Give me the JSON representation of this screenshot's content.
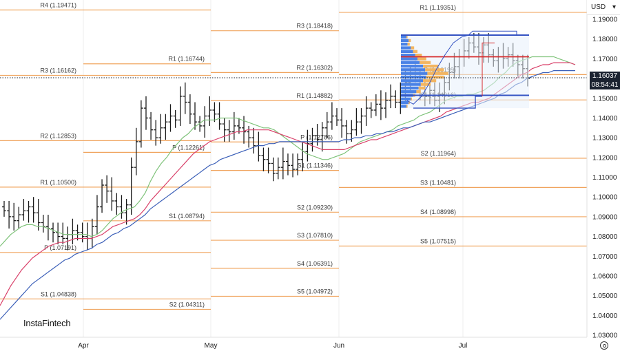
{
  "currency": {
    "label": "USD",
    "caret": "▾"
  },
  "current_price": {
    "value": "1.16037",
    "countdown": "08:54:41"
  },
  "logo_text": "InstaFintech",
  "colors": {
    "pivot_line": "#f0a45e",
    "pivot_text": "#3a3a3a",
    "bar": "#1a1a1a",
    "ma_fast": "#7fc37a",
    "ma_mid": "#d9416a",
    "ma_slow": "#3b5fb8",
    "vp_box": "#3352c2",
    "vp_fill": "#e8f0fb",
    "poc": "#d62a2a",
    "vol_blue": "#4a82e6",
    "vol_orange": "#f3b560",
    "grid": "#ececec"
  },
  "chart_data": {
    "type": "bar",
    "y_axis": {
      "min": 1.03,
      "max": 1.195,
      "ticks": [
        "1.19000",
        "1.18000",
        "1.17000",
        "1.16000",
        "1.15000",
        "1.14000",
        "1.13000",
        "1.12000",
        "1.11000",
        "1.10000",
        "1.09000",
        "1.08000",
        "1.07000",
        "1.06000",
        "1.05000",
        "1.04000",
        "1.03000"
      ]
    },
    "x_axis": {
      "months": [
        "Apr",
        "May",
        "Jun",
        "Jul"
      ]
    },
    "pivot_levels": [
      {
        "label": "R4 (1.19471)",
        "value": 1.19471,
        "period": 0
      },
      {
        "label": "R3 (1.16162)",
        "value": 1.16162,
        "period": 0
      },
      {
        "label": "R2 (1.12853)",
        "value": 1.12853,
        "period": 0
      },
      {
        "label": "R1 (1.10500)",
        "value": 1.105,
        "period": 0
      },
      {
        "label": "P (1.07191)",
        "value": 1.07191,
        "period": 0
      },
      {
        "label": "S1 (1.04838)",
        "value": 1.04838,
        "period": 0
      },
      {
        "label": "R1 (1.16744)",
        "value": 1.16744,
        "period": 1
      },
      {
        "label": "P (1.12261)",
        "value": 1.12261,
        "period": 1
      },
      {
        "label": "S1 (1.08794)",
        "value": 1.08794,
        "period": 1
      },
      {
        "label": "S2 (1.04311)",
        "value": 1.04311,
        "period": 1
      },
      {
        "label": "R3 (1.18418)",
        "value": 1.18418,
        "period": 2
      },
      {
        "label": "R2 (1.16302)",
        "value": 1.16302,
        "period": 2
      },
      {
        "label": "R1 (1.14882)",
        "value": 1.14882,
        "period": 2
      },
      {
        "label": "P (1.12786)",
        "value": 1.12786,
        "period": 2
      },
      {
        "label": "S1 (1.11346)",
        "value": 1.11346,
        "period": 2
      },
      {
        "label": "S2 (1.09230)",
        "value": 1.0923,
        "period": 2
      },
      {
        "label": "S3 (1.07810)",
        "value": 1.0781,
        "period": 2
      },
      {
        "label": "S4 (1.06391)",
        "value": 1.06391,
        "period": 2
      },
      {
        "label": "S5 (1.04972)",
        "value": 1.04972,
        "period": 2
      },
      {
        "label": "R1 (1.19351)",
        "value": 1.19351,
        "period": 3
      },
      {
        "label": "P (1.16199)",
        "value": 1.16199,
        "period": 3
      },
      {
        "label": "S1 (1.14916)",
        "value": 1.14916,
        "period": 3
      },
      {
        "label": "S2 (1.11964)",
        "value": 1.11964,
        "period": 3
      },
      {
        "label": "S3 (1.10481)",
        "value": 1.10481,
        "period": 3
      },
      {
        "label": "S4 (1.08998)",
        "value": 1.08998,
        "period": 3
      },
      {
        "label": "S5 (1.07515)",
        "value": 1.07515,
        "period": 3
      }
    ],
    "price_closes": [
      1.093,
      1.09,
      1.088,
      1.091,
      1.093,
      1.095,
      1.092,
      1.087,
      1.085,
      1.084,
      1.082,
      1.08,
      1.079,
      1.081,
      1.083,
      1.082,
      1.08,
      1.079,
      1.085,
      1.095,
      1.106,
      1.103,
      1.098,
      1.095,
      1.092,
      1.096,
      1.115,
      1.128,
      1.145,
      1.14,
      1.134,
      1.13,
      1.135,
      1.138,
      1.141,
      1.139,
      1.151,
      1.148,
      1.142,
      1.138,
      1.136,
      1.141,
      1.144,
      1.142,
      1.137,
      1.134,
      1.133,
      1.136,
      1.135,
      1.133,
      1.13,
      1.126,
      1.121,
      1.119,
      1.117,
      1.112,
      1.115,
      1.118,
      1.116,
      1.114,
      1.119,
      1.123,
      1.127,
      1.131,
      1.129,
      1.135,
      1.138,
      1.141,
      1.139,
      1.136,
      1.132,
      1.134,
      1.138,
      1.141,
      1.145,
      1.144,
      1.147,
      1.145,
      1.149,
      1.151,
      1.148,
      1.153,
      1.158,
      1.163,
      1.161,
      1.155,
      1.151,
      1.154,
      1.149,
      1.152,
      1.158,
      1.163,
      1.166,
      1.171,
      1.174,
      1.178,
      1.176,
      1.173,
      1.177,
      1.172,
      1.169,
      1.171,
      1.17,
      1.172,
      1.169,
      1.167,
      1.165,
      1.16
    ],
    "moving_averages": [
      {
        "color_key": "ma_fast",
        "values": [
          1.075,
          1.078,
          1.081,
          1.083,
          1.085,
          1.086,
          1.086,
          1.085,
          1.085,
          1.084,
          1.083,
          1.082,
          1.081,
          1.081,
          1.081,
          1.081,
          1.081,
          1.08,
          1.081,
          1.083,
          1.086,
          1.089,
          1.091,
          1.093,
          1.094,
          1.095,
          1.098,
          1.102,
          1.108,
          1.113,
          1.117,
          1.12,
          1.124,
          1.127,
          1.13,
          1.132,
          1.135,
          1.137,
          1.139,
          1.139,
          1.139,
          1.14,
          1.14,
          1.14,
          1.14,
          1.139,
          1.138,
          1.137,
          1.136,
          1.135,
          1.135,
          1.134,
          1.132,
          1.13,
          1.128,
          1.126,
          1.124,
          1.122,
          1.121,
          1.12,
          1.119,
          1.119,
          1.12,
          1.121,
          1.122,
          1.124,
          1.126,
          1.128,
          1.129,
          1.13,
          1.131,
          1.132,
          1.133,
          1.134,
          1.136,
          1.137,
          1.138,
          1.139,
          1.141,
          1.142,
          1.143,
          1.145,
          1.147,
          1.149,
          1.15,
          1.151,
          1.151,
          1.152,
          1.152,
          1.153,
          1.154,
          1.156,
          1.158,
          1.161,
          1.163,
          1.166,
          1.168,
          1.169,
          1.17,
          1.171,
          1.171,
          1.171,
          1.171,
          1.171,
          1.17,
          1.169,
          1.168,
          1.167
        ]
      },
      {
        "color_key": "ma_mid",
        "values": [
          1.045,
          1.05,
          1.055,
          1.059,
          1.063,
          1.066,
          1.069,
          1.071,
          1.073,
          1.075,
          1.076,
          1.077,
          1.077,
          1.078,
          1.079,
          1.079,
          1.079,
          1.079,
          1.08,
          1.081,
          1.083,
          1.085,
          1.086,
          1.087,
          1.088,
          1.089,
          1.091,
          1.094,
          1.098,
          1.101,
          1.104,
          1.107,
          1.11,
          1.113,
          1.116,
          1.119,
          1.122,
          1.124,
          1.126,
          1.128,
          1.129,
          1.13,
          1.131,
          1.132,
          1.133,
          1.133,
          1.134,
          1.134,
          1.134,
          1.134,
          1.134,
          1.133,
          1.132,
          1.131,
          1.13,
          1.129,
          1.128,
          1.127,
          1.126,
          1.125,
          1.124,
          1.124,
          1.124,
          1.124,
          1.124,
          1.125,
          1.126,
          1.127,
          1.128,
          1.129,
          1.129,
          1.13,
          1.131,
          1.132,
          1.133,
          1.134,
          1.135,
          1.136,
          1.137,
          1.138,
          1.139,
          1.14,
          1.141,
          1.143,
          1.144,
          1.145,
          1.146,
          1.147,
          1.148,
          1.148,
          1.149,
          1.15,
          1.152,
          1.154,
          1.156,
          1.158,
          1.16,
          1.162,
          1.163,
          1.165,
          1.166,
          1.167,
          1.167,
          1.168,
          1.168,
          1.168,
          1.168,
          1.167
        ]
      },
      {
        "color_key": "ma_slow",
        "values": [
          1.038,
          1.041,
          1.044,
          1.047,
          1.05,
          1.053,
          1.056,
          1.058,
          1.06,
          1.062,
          1.064,
          1.066,
          1.068,
          1.069,
          1.071,
          1.072,
          1.073,
          1.074,
          1.076,
          1.077,
          1.079,
          1.081,
          1.082,
          1.084,
          1.085,
          1.087,
          1.089,
          1.091,
          1.094,
          1.096,
          1.098,
          1.1,
          1.102,
          1.104,
          1.106,
          1.108,
          1.11,
          1.112,
          1.114,
          1.116,
          1.117,
          1.119,
          1.12,
          1.121,
          1.122,
          1.123,
          1.124,
          1.125,
          1.126,
          1.126,
          1.127,
          1.127,
          1.128,
          1.128,
          1.128,
          1.128,
          1.128,
          1.128,
          1.128,
          1.128,
          1.128,
          1.128,
          1.128,
          1.128,
          1.129,
          1.129,
          1.13,
          1.13,
          1.131,
          1.131,
          1.132,
          1.132,
          1.133,
          1.133,
          1.134,
          1.135,
          1.135,
          1.136,
          1.137,
          1.138,
          1.138,
          1.139,
          1.14,
          1.141,
          1.142,
          1.143,
          1.144,
          1.145,
          1.146,
          1.147,
          1.148,
          1.149,
          1.15,
          1.152,
          1.153,
          1.155,
          1.157,
          1.158,
          1.16,
          1.161,
          1.162,
          1.163,
          1.163,
          1.164,
          1.164,
          1.164,
          1.164,
          1.164
        ]
      }
    ],
    "volume_profile": {
      "top": 1.182,
      "bottom": 1.145,
      "poc": 1.171,
      "row_values": [
        5,
        7,
        6,
        9,
        11,
        13,
        15,
        17,
        20,
        22,
        24,
        23,
        20,
        18,
        16,
        14,
        11,
        9,
        7,
        5
      ],
      "orange_values": [
        1,
        2,
        2,
        3,
        4,
        6,
        8,
        10,
        14,
        17,
        19,
        16,
        12,
        9,
        6,
        4,
        2,
        1,
        1,
        1
      ]
    }
  }
}
